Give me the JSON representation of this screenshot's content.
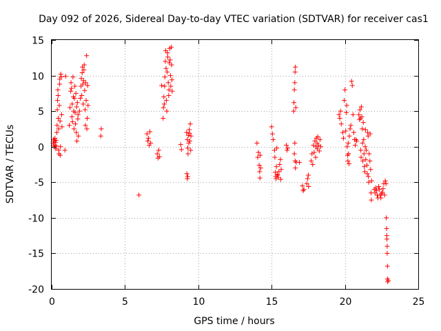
{
  "chart_data": {
    "type": "scatter",
    "title": "Day 092 of 2026, Sidereal Day-to-day VTEC variation (SDTVAR) for receiver cas1",
    "xlabel": "GPS time / hours",
    "ylabel": "SDTVAR / TECUs",
    "xlim": [
      0,
      25
    ],
    "ylim": [
      -20,
      15
    ],
    "xticks": [
      0,
      5,
      10,
      15,
      20,
      25
    ],
    "yticks": [
      -20,
      -15,
      -10,
      -5,
      0,
      5,
      10,
      15
    ],
    "xtick_labels": [
      "0",
      "5",
      "10",
      "15",
      "20",
      "25"
    ],
    "ytick_labels": [
      "-20",
      "-15",
      "-10",
      "-5",
      "0",
      "5",
      "10",
      "15"
    ],
    "grid": true,
    "marker": "+",
    "series": [
      {
        "name": "SDTVAR",
        "color": "#ff0000",
        "points": [
          [
            0.1,
            0.5
          ],
          [
            0.12,
            1.0
          ],
          [
            0.15,
            0.2
          ],
          [
            0.18,
            0.8
          ],
          [
            0.2,
            0.0
          ],
          [
            0.22,
            1.2
          ],
          [
            0.25,
            0.6
          ],
          [
            0.28,
            -0.3
          ],
          [
            0.3,
            0.9
          ],
          [
            0.32,
            0.1
          ],
          [
            0.35,
            2.0
          ],
          [
            0.37,
            3.0
          ],
          [
            0.38,
            5.2
          ],
          [
            0.4,
            6.5
          ],
          [
            0.42,
            8.0
          ],
          [
            0.44,
            7.2
          ],
          [
            0.45,
            4.0
          ],
          [
            0.47,
            2.5
          ],
          [
            0.48,
            -0.5
          ],
          [
            0.5,
            -1.0
          ],
          [
            0.52,
            5.8
          ],
          [
            0.54,
            8.8
          ],
          [
            0.55,
            9.5
          ],
          [
            0.57,
            3.6
          ],
          [
            0.58,
            -1.2
          ],
          [
            0.6,
            0.0
          ],
          [
            0.62,
            10.2
          ],
          [
            0.65,
            9.8
          ],
          [
            0.68,
            4.5
          ],
          [
            0.7,
            2.8
          ],
          [
            0.9,
            -0.5
          ],
          [
            0.95,
            9.9
          ],
          [
            1.2,
            3.0
          ],
          [
            1.25,
            5.5
          ],
          [
            1.3,
            7.8
          ],
          [
            1.32,
            9.0
          ],
          [
            1.35,
            8.2
          ],
          [
            1.38,
            4.2
          ],
          [
            1.4,
            6.0
          ],
          [
            1.42,
            3.5
          ],
          [
            1.45,
            9.8
          ],
          [
            1.48,
            7.0
          ],
          [
            1.5,
            5.0
          ],
          [
            1.52,
            2.5
          ],
          [
            1.55,
            6.8
          ],
          [
            1.58,
            8.5
          ],
          [
            1.6,
            4.8
          ],
          [
            1.62,
            3.2
          ],
          [
            1.65,
            7.5
          ],
          [
            1.68,
            2.0
          ],
          [
            1.7,
            5.6
          ],
          [
            1.72,
            0.8
          ],
          [
            1.75,
            6.2
          ],
          [
            1.78,
            3.9
          ],
          [
            1.8,
            4.5
          ],
          [
            1.82,
            1.5
          ],
          [
            1.9,
            5.0
          ],
          [
            1.95,
            6.8
          ],
          [
            2.0,
            8.5
          ],
          [
            2.02,
            9.6
          ],
          [
            2.05,
            7.2
          ],
          [
            2.08,
            10.4
          ],
          [
            2.1,
            11.2
          ],
          [
            2.12,
            8.8
          ],
          [
            2.15,
            6.0
          ],
          [
            2.18,
            9.3
          ],
          [
            2.2,
            10.8
          ],
          [
            2.22,
            11.5
          ],
          [
            2.25,
            7.9
          ],
          [
            2.28,
            5.2
          ],
          [
            2.3,
            3.0
          ],
          [
            2.32,
            9.0
          ],
          [
            2.35,
            6.5
          ],
          [
            2.38,
            12.8
          ],
          [
            2.4,
            2.5
          ],
          [
            2.42,
            4.0
          ],
          [
            2.45,
            8.6
          ],
          [
            2.48,
            5.8
          ],
          [
            3.35,
            1.5
          ],
          [
            3.38,
            2.5
          ],
          [
            5.95,
            -6.8
          ],
          [
            6.5,
            1.8
          ],
          [
            6.55,
            0.8
          ],
          [
            6.6,
            1.2
          ],
          [
            6.65,
            0.2
          ],
          [
            6.7,
            2.1
          ],
          [
            6.75,
            0.5
          ],
          [
            7.2,
            -1.0
          ],
          [
            7.25,
            -1.6
          ],
          [
            7.3,
            -0.5
          ],
          [
            7.35,
            -1.4
          ],
          [
            7.6,
            4.0
          ],
          [
            7.62,
            5.5
          ],
          [
            7.65,
            7.0
          ],
          [
            7.68,
            6.0
          ],
          [
            7.7,
            8.5
          ],
          [
            7.72,
            9.8
          ],
          [
            7.75,
            12.0
          ],
          [
            7.78,
            13.5
          ],
          [
            7.8,
            11.0
          ],
          [
            7.82,
            6.5
          ],
          [
            7.85,
            5.0
          ],
          [
            7.88,
            10.5
          ],
          [
            7.9,
            13.2
          ],
          [
            7.92,
            12.6
          ],
          [
            7.95,
            9.0
          ],
          [
            7.98,
            7.2
          ],
          [
            8.0,
            8.0
          ],
          [
            8.02,
            11.8
          ],
          [
            8.05,
            13.8
          ],
          [
            8.08,
            12.2
          ],
          [
            8.1,
            10.0
          ],
          [
            8.12,
            8.5
          ],
          [
            8.15,
            14.0
          ],
          [
            8.18,
            11.5
          ],
          [
            8.2,
            9.4
          ],
          [
            8.22,
            7.8
          ],
          [
            7.5,
            8.6
          ],
          [
            8.8,
            0.3
          ],
          [
            8.85,
            -0.4
          ],
          [
            9.2,
            2.0
          ],
          [
            9.25,
            1.0
          ],
          [
            9.28,
            -0.2
          ],
          [
            9.3,
            -1.0
          ],
          [
            9.32,
            1.6
          ],
          [
            9.35,
            0.5
          ],
          [
            9.38,
            2.4
          ],
          [
            9.4,
            1.9
          ],
          [
            9.42,
            0.8
          ],
          [
            9.45,
            3.2
          ],
          [
            9.48,
            -0.5
          ],
          [
            9.5,
            1.5
          ],
          [
            9.22,
            -3.8
          ],
          [
            9.25,
            -4.5
          ],
          [
            9.28,
            -4.2
          ],
          [
            14.0,
            0.5
          ],
          [
            14.05,
            -1.5
          ],
          [
            14.1,
            -0.8
          ],
          [
            14.15,
            -2.6
          ],
          [
            14.18,
            -3.5
          ],
          [
            14.2,
            -4.4
          ],
          [
            14.22,
            -1.2
          ],
          [
            14.25,
            -3.0
          ],
          [
            15.0,
            2.8
          ],
          [
            15.05,
            1.8
          ],
          [
            15.1,
            1.0
          ],
          [
            15.2,
            -0.5
          ],
          [
            15.22,
            -1.5
          ],
          [
            15.25,
            -3.6
          ],
          [
            15.28,
            -4.2
          ],
          [
            15.3,
            -4.5
          ],
          [
            15.32,
            -2.8
          ],
          [
            15.35,
            -0.2
          ],
          [
            15.38,
            -3.9
          ],
          [
            15.4,
            -4.0
          ],
          [
            15.45,
            -4.3
          ],
          [
            15.5,
            -3.5
          ],
          [
            15.55,
            -2.5
          ],
          [
            15.6,
            -1.8
          ],
          [
            15.62,
            -4.6
          ],
          [
            15.65,
            -3.2
          ],
          [
            16.0,
            0.2
          ],
          [
            16.05,
            -0.5
          ],
          [
            16.1,
            -0.2
          ],
          [
            16.5,
            5.0
          ],
          [
            16.52,
            6.2
          ],
          [
            16.55,
            8.0
          ],
          [
            16.58,
            9.0
          ],
          [
            16.6,
            10.5
          ],
          [
            16.62,
            11.2
          ],
          [
            16.65,
            5.5
          ],
          [
            16.58,
            0.5
          ],
          [
            16.55,
            -1.0
          ],
          [
            16.6,
            -2.0
          ],
          [
            16.62,
            -3.0
          ],
          [
            16.68,
            -2.2
          ],
          [
            16.9,
            -2.2
          ],
          [
            17.1,
            -5.5
          ],
          [
            17.15,
            -6.2
          ],
          [
            17.2,
            -6.0
          ],
          [
            17.4,
            -5.2
          ],
          [
            17.45,
            -4.5
          ],
          [
            17.5,
            -4.0
          ],
          [
            17.52,
            -5.6
          ],
          [
            17.7,
            -2.0
          ],
          [
            17.75,
            -1.0
          ],
          [
            17.8,
            -2.5
          ],
          [
            17.85,
            0.2
          ],
          [
            17.9,
            -0.8
          ],
          [
            17.95,
            0.8
          ],
          [
            18.0,
            -1.5
          ],
          [
            18.02,
            0.0
          ],
          [
            18.05,
            1.2
          ],
          [
            18.1,
            0.5
          ],
          [
            18.12,
            -0.3
          ],
          [
            18.15,
            1.4
          ],
          [
            18.2,
            0.2
          ],
          [
            18.25,
            -0.6
          ],
          [
            18.3,
            1.0
          ],
          [
            18.35,
            0.0
          ],
          [
            19.6,
            4.5
          ],
          [
            19.65,
            4.0
          ],
          [
            19.7,
            5.0
          ],
          [
            19.75,
            3.2
          ],
          [
            19.85,
            2.0
          ],
          [
            19.9,
            1.2
          ],
          [
            19.95,
            6.5
          ],
          [
            20.0,
            8.0
          ],
          [
            20.05,
            2.2
          ],
          [
            20.1,
            4.8
          ],
          [
            20.12,
            5.8
          ],
          [
            20.15,
            0.0
          ],
          [
            20.18,
            -1.2
          ],
          [
            20.2,
            -2.0
          ],
          [
            20.22,
            0.5
          ],
          [
            20.25,
            -1.0
          ],
          [
            20.28,
            -2.4
          ],
          [
            20.3,
            1.5
          ],
          [
            20.35,
            2.5
          ],
          [
            20.4,
            3.0
          ],
          [
            20.45,
            9.2
          ],
          [
            20.5,
            8.6
          ],
          [
            20.55,
            4.5
          ],
          [
            20.6,
            2.0
          ],
          [
            20.65,
            1.0
          ],
          [
            20.7,
            0.2
          ],
          [
            20.75,
            1.0
          ],
          [
            20.8,
            0.8
          ],
          [
            20.95,
            4.5
          ],
          [
            21.0,
            3.8
          ],
          [
            21.02,
            5.2
          ],
          [
            21.05,
            4.0
          ],
          [
            21.08,
            -0.5
          ],
          [
            21.1,
            -1.5
          ],
          [
            21.12,
            5.6
          ],
          [
            21.15,
            4.2
          ],
          [
            21.18,
            2.5
          ],
          [
            21.2,
            0.5
          ],
          [
            21.22,
            -2.0
          ],
          [
            21.25,
            3.4
          ],
          [
            21.28,
            1.0
          ],
          [
            21.3,
            -1.0
          ],
          [
            21.32,
            -2.8
          ],
          [
            21.35,
            -3.5
          ],
          [
            21.38,
            0.0
          ],
          [
            21.4,
            2.4
          ],
          [
            21.42,
            -1.8
          ],
          [
            21.45,
            -0.5
          ],
          [
            21.5,
            -2.6
          ],
          [
            21.52,
            -3.8
          ],
          [
            21.55,
            2.0
          ],
          [
            21.58,
            1.5
          ],
          [
            21.6,
            -4.2
          ],
          [
            21.62,
            -5.0
          ],
          [
            21.65,
            -1.0
          ],
          [
            21.7,
            -2.0
          ],
          [
            21.72,
            1.8
          ],
          [
            21.75,
            -3.2
          ],
          [
            21.78,
            -6.5
          ],
          [
            21.8,
            -7.5
          ],
          [
            21.82,
            -4.8
          ],
          [
            22.0,
            -6.0
          ],
          [
            22.05,
            -6.5
          ],
          [
            22.1,
            -5.8
          ],
          [
            22.15,
            -6.2
          ],
          [
            22.2,
            -6.8
          ],
          [
            22.25,
            -7.2
          ],
          [
            22.3,
            -5.6
          ],
          [
            22.35,
            -6.0
          ],
          [
            22.4,
            -6.8
          ],
          [
            22.45,
            -7.2
          ],
          [
            22.5,
            -6.6
          ],
          [
            22.55,
            -6.4
          ],
          [
            22.6,
            -5.9
          ],
          [
            22.65,
            -5.2
          ],
          [
            22.7,
            -6.8
          ],
          [
            22.75,
            -4.8
          ],
          [
            22.8,
            -5.2
          ],
          [
            22.82,
            -10.0
          ],
          [
            22.84,
            -11.5
          ],
          [
            22.86,
            -13.0
          ],
          [
            22.88,
            -15.0
          ],
          [
            22.9,
            -16.8
          ],
          [
            22.9,
            -18.6
          ],
          [
            22.92,
            -19.0
          ],
          [
            22.95,
            -18.8
          ],
          [
            22.88,
            -14.0
          ],
          [
            22.85,
            -12.5
          ]
        ]
      }
    ]
  }
}
